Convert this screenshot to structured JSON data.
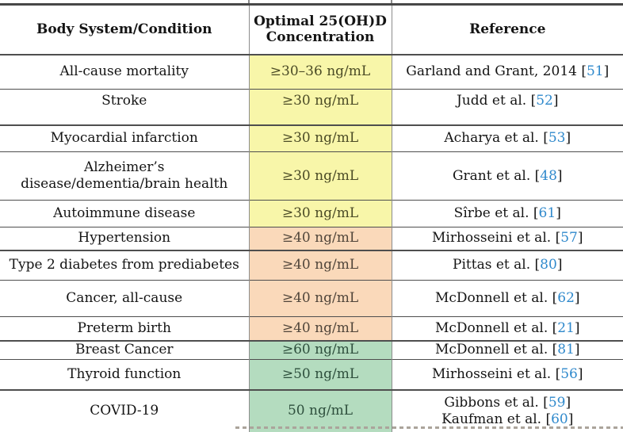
{
  "table": {
    "header": {
      "condition": "Body System/Condition",
      "concentration_line1": "Optimal 25(OH)D",
      "concentration_line2": "Concentration",
      "reference": "Reference"
    },
    "rows": [
      {
        "condition_lines": [
          "All-cause mortality"
        ],
        "concentration": "≥30–36 ng/mL",
        "group": "yellow",
        "references": [
          {
            "prefix": "Garland and Grant, 2014 [",
            "num": "51",
            "suffix": "]"
          }
        ]
      },
      {
        "condition_lines": [
          "Stroke"
        ],
        "concentration": "≥30 ng/mL",
        "group": "yellow",
        "references": [
          {
            "prefix": "Judd et al. [",
            "num": "52",
            "suffix": "]"
          }
        ]
      },
      {
        "condition_lines": [
          "Myocardial infarction"
        ],
        "concentration": "≥30 ng/mL",
        "group": "yellow",
        "references": [
          {
            "prefix": "Acharya et al. [",
            "num": "53",
            "suffix": "]"
          }
        ]
      },
      {
        "condition_lines": [
          "Alzheimer’s",
          "disease/dementia/brain health"
        ],
        "concentration": "≥30 ng/mL",
        "group": "yellow",
        "references": [
          {
            "prefix": "Grant et al. [",
            "num": "48",
            "suffix": "]"
          }
        ]
      },
      {
        "condition_lines": [
          "Autoimmune disease"
        ],
        "concentration": "≥30 ng/mL",
        "group": "yellow",
        "references": [
          {
            "prefix": "Sîrbe et al. [",
            "num": "61",
            "suffix": "]"
          }
        ]
      },
      {
        "condition_lines": [
          "Hypertension"
        ],
        "concentration": "≥40 ng/mL",
        "group": "orange",
        "references": [
          {
            "prefix": "Mirhosseini et al. [",
            "num": "57",
            "suffix": "]"
          }
        ]
      },
      {
        "condition_lines": [
          "Type 2 diabetes from prediabetes"
        ],
        "concentration": "≥40 ng/mL",
        "group": "orange",
        "references": [
          {
            "prefix": "Pittas et al. [",
            "num": "80",
            "suffix": "]"
          }
        ]
      },
      {
        "condition_lines": [
          "Cancer, all-cause"
        ],
        "concentration": "≥40 ng/mL",
        "group": "orange",
        "references": [
          {
            "prefix": "McDonnell et al. [",
            "num": "62",
            "suffix": "]"
          }
        ]
      },
      {
        "condition_lines": [
          "Preterm birth"
        ],
        "concentration": "≥40 ng/mL",
        "group": "orange",
        "references": [
          {
            "prefix": "McDonnell et al. [",
            "num": "21",
            "suffix": "]"
          }
        ]
      },
      {
        "condition_lines": [
          "Breast Cancer"
        ],
        "concentration": "≥60 ng/mL",
        "group": "green",
        "references": [
          {
            "prefix": "McDonnell et al. [",
            "num": "81",
            "suffix": "]"
          }
        ]
      },
      {
        "condition_lines": [
          "Thyroid function"
        ],
        "concentration": "≥50 ng/mL",
        "group": "green",
        "references": [
          {
            "prefix": "Mirhosseini et al. [",
            "num": "56",
            "suffix": "]"
          }
        ]
      },
      {
        "condition_lines": [
          "COVID-19"
        ],
        "concentration": "50 ng/mL",
        "group": "green",
        "references": [
          {
            "prefix": "Gibbons et al. [",
            "num": "59",
            "suffix": "]"
          },
          {
            "prefix": "Kaufman et al. [",
            "num": "60",
            "suffix": "]"
          }
        ]
      }
    ],
    "colors": {
      "yellow_highlight": "#F8F6A9",
      "orange_highlight": "#FAD9BA",
      "green_highlight": "#B4DCBF",
      "citation_blue": "#2F89CC",
      "rule_dark": "#474747"
    }
  }
}
